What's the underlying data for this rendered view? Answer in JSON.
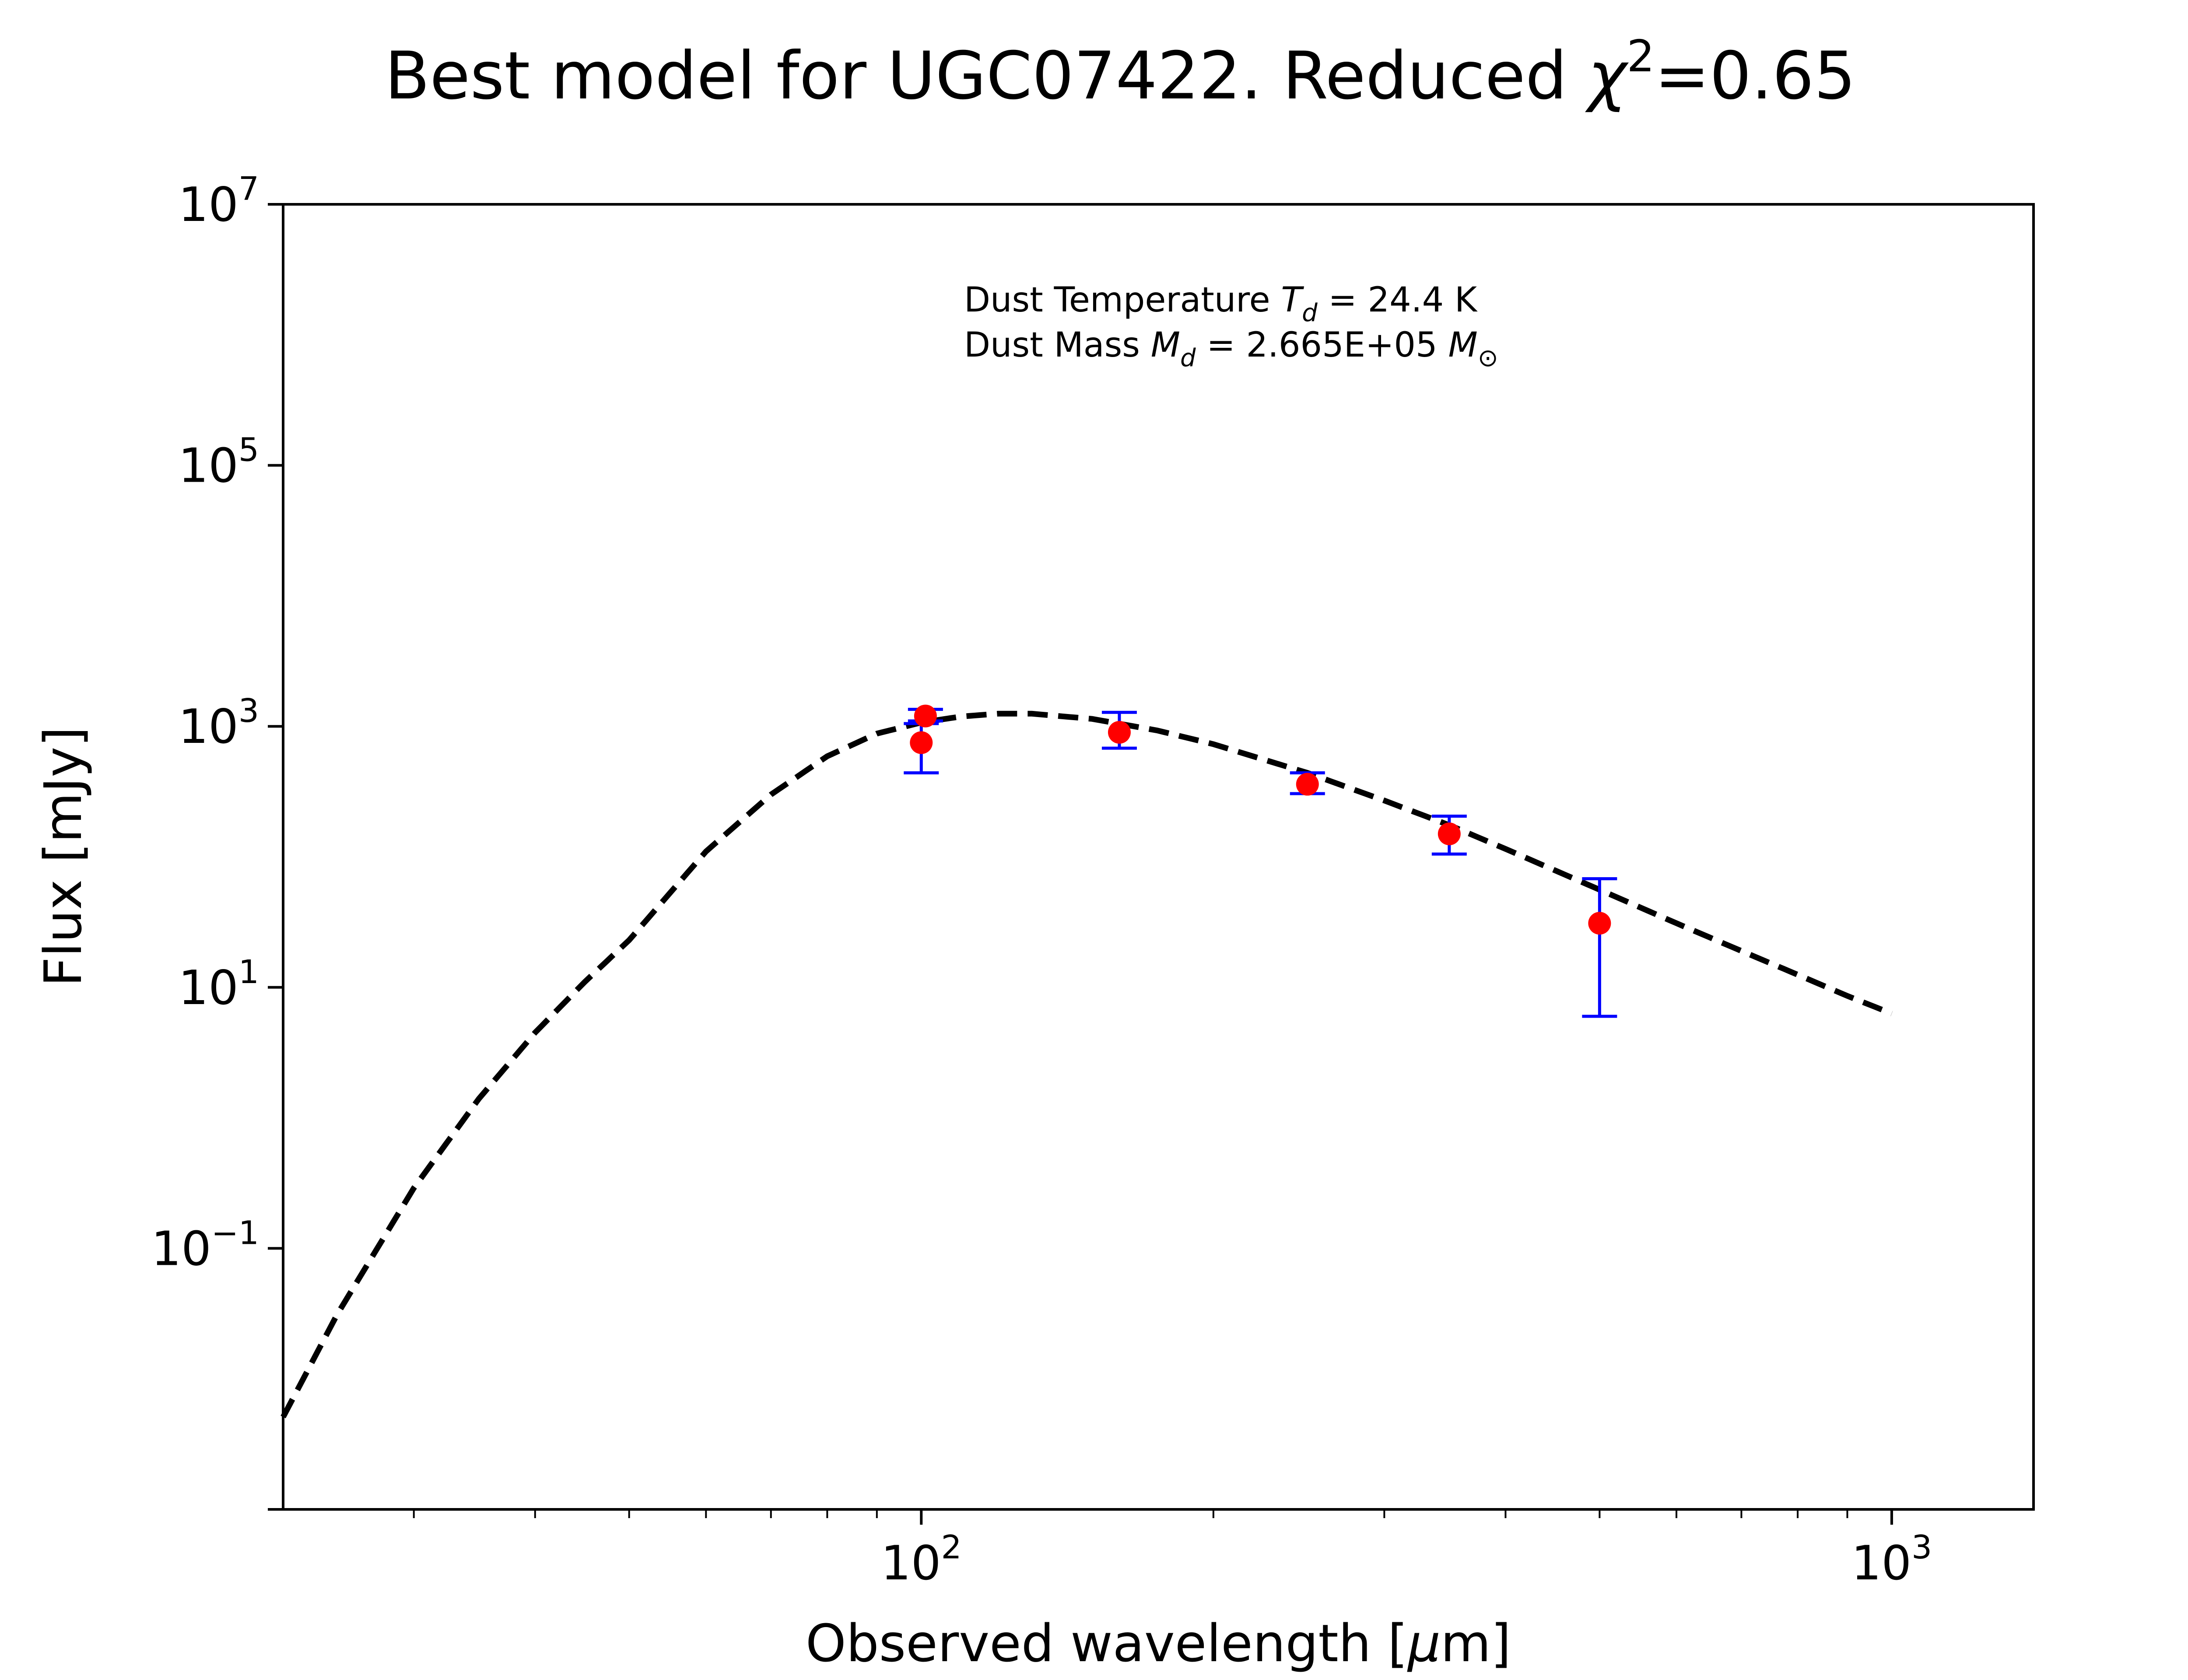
{
  "title": {
    "prefix": "Best model for UGC07422. Reduced ",
    "chi": "χ",
    "sup": "2",
    "suffix": "=0.65"
  },
  "xlabel": {
    "before": "Observed wavelength [",
    "mu": "μ",
    "after": "m]"
  },
  "ylabel": "Flux [mJy]",
  "annotation": {
    "line1_prefix": "Dust Temperature ",
    "line1_sym": "T",
    "line1_sub": "d",
    "line1_value": " = 24.4 K",
    "line2_prefix": "Dust Mass ",
    "line2_sym": "M",
    "line2_sub": "d",
    "line2_value": " = 2.665E+05 ",
    "line2_unit": "M",
    "line2_unit_sub": "⊙"
  },
  "colors": {
    "points": "#ff0000",
    "errorbars": "#0000ff",
    "model": "#000000",
    "frame": "#000000"
  },
  "chart_data": {
    "type": "scatter",
    "x_scale": "log",
    "y_scale": "log",
    "xlim": [
      22,
      1400
    ],
    "ylim": [
      0.001,
      10000000
    ],
    "x_ticks": [
      {
        "value": 100,
        "base": "10",
        "exp": "2"
      },
      {
        "value": 1000,
        "base": "10",
        "exp": "3"
      }
    ],
    "y_ticks": [
      {
        "value": 0.1,
        "base": "10",
        "exp": "−1"
      },
      {
        "value": 10,
        "base": "10",
        "exp": "1"
      },
      {
        "value": 1000,
        "base": "10",
        "exp": "3"
      },
      {
        "value": 100000,
        "base": "10",
        "exp": "5"
      },
      {
        "value": 10000000,
        "base": "10",
        "exp": "7"
      }
    ],
    "series": [
      {
        "type": "scatter_errorbar",
        "points": [
          {
            "x": 100,
            "y": 750,
            "yerr_low": 310,
            "yerr_high": 300
          },
          {
            "x": 101,
            "y": 1200,
            "yerr_low": 100,
            "yerr_high": 150
          },
          {
            "x": 160,
            "y": 900,
            "yerr_low": 220,
            "yerr_high": 380
          },
          {
            "x": 250,
            "y": 360,
            "yerr_low": 55,
            "yerr_high": 80
          },
          {
            "x": 350,
            "y": 150,
            "yerr_low": 45,
            "yerr_high": 55
          },
          {
            "x": 500,
            "y": 31,
            "yerr_low": 25,
            "yerr_high": 37
          }
        ]
      },
      {
        "type": "line",
        "style": "dashed",
        "points": [
          {
            "x": 22,
            "y": 0.0051
          },
          {
            "x": 25,
            "y": 0.031
          },
          {
            "x": 30,
            "y": 0.29
          },
          {
            "x": 35,
            "y": 1.4
          },
          {
            "x": 40,
            "y": 4.5
          },
          {
            "x": 45,
            "y": 11
          },
          {
            "x": 50,
            "y": 23
          },
          {
            "x": 60,
            "y": 110
          },
          {
            "x": 70,
            "y": 300
          },
          {
            "x": 80,
            "y": 590
          },
          {
            "x": 90,
            "y": 880
          },
          {
            "x": 100,
            "y": 1070
          },
          {
            "x": 110,
            "y": 1190
          },
          {
            "x": 120,
            "y": 1250
          },
          {
            "x": 130,
            "y": 1250
          },
          {
            "x": 150,
            "y": 1140
          },
          {
            "x": 175,
            "y": 930
          },
          {
            "x": 200,
            "y": 730
          },
          {
            "x": 250,
            "y": 440
          },
          {
            "x": 300,
            "y": 270
          },
          {
            "x": 350,
            "y": 175
          },
          {
            "x": 400,
            "y": 115
          },
          {
            "x": 500,
            "y": 56
          },
          {
            "x": 600,
            "y": 31
          },
          {
            "x": 700,
            "y": 19
          },
          {
            "x": 800,
            "y": 12.5
          },
          {
            "x": 900,
            "y": 8.6
          },
          {
            "x": 1000,
            "y": 6.3
          }
        ]
      }
    ]
  }
}
